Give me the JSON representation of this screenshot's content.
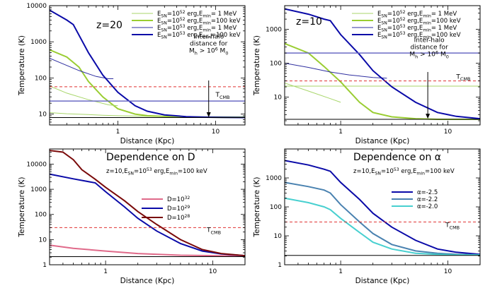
{
  "figure": {
    "x_label": "Distance (Kpc)",
    "y_label": "Temperature (K)"
  },
  "colors": {
    "light_green": "#a8d66a",
    "green": "#9acd32",
    "navy": "#2f2fa0",
    "blue": "#0a0aa8",
    "red_dash": "#e03030",
    "slate": "#6b6bc4",
    "black": "#000000",
    "pink": "#e06a8a",
    "maroon": "#7a0a0a",
    "steel": "#4a82b0",
    "cyan": "#48d0d0",
    "lime_flat": "#b8e08a"
  },
  "chart_data": [
    {
      "id": "z20",
      "type": "line",
      "title": "z=20",
      "subtitle": "",
      "xlabel": "Distance (Kpc)",
      "ylabel": "Temperature (K)",
      "xlim": [
        0.2,
        20
      ],
      "ylim": [
        5,
        10000
      ],
      "x_ticks": [
        "1",
        "10"
      ],
      "y_ticks": [
        "10",
        "100",
        "1000",
        "10000"
      ],
      "legend_position": "top-right",
      "series": [
        {
          "name": "E_SN=10^52 erg,E_min=   1 MeV",
          "legend": true,
          "color": "#a8d66a",
          "width": 1.0,
          "x": [
            0.2,
            0.3,
            0.5,
            0.7,
            1.0,
            1.5,
            2,
            3,
            5,
            8,
            12,
            20
          ],
          "y": [
            11,
            10.2,
            9.7,
            9.3,
            9.0,
            8.8,
            8.7,
            8.6,
            8.5,
            8.5,
            8.5,
            8.5
          ]
        },
        {
          "name": "E_SN=10^52 erg,E_min=100 keV",
          "legend": true,
          "color": "#9acd32",
          "width": 2.0,
          "x": [
            0.2,
            0.3,
            0.4,
            0.5,
            0.7,
            1.0,
            1.5,
            2,
            3,
            5,
            8,
            12,
            20
          ],
          "y": [
            600,
            380,
            200,
            80,
            30,
            14,
            10,
            9,
            8.6,
            8.3,
            8.2,
            8.1,
            8.1
          ]
        },
        {
          "name": "E_SN=10^53 erg,E_min=   1 MeV",
          "legend": true,
          "color": "#2f2fa0",
          "width": 1.0,
          "x": [
            0.2,
            0.4,
            0.6,
            0.8,
            0.9
          ],
          "y": [
            350,
            160,
            110,
            95,
            95
          ]
        },
        {
          "name": "E_SN=10^53 erg,E_min=100 keV",
          "legend": true,
          "color": "#0a0aa8",
          "width": 2.0,
          "x": [
            0.2,
            0.3,
            0.35,
            0.5,
            0.7,
            1.0,
            1.5,
            2,
            3,
            5,
            8,
            12,
            20
          ],
          "y": [
            7500,
            4000,
            3000,
            500,
            120,
            40,
            17,
            12,
            9.5,
            8.5,
            8.2,
            8.1,
            8.0
          ]
        },
        {
          "name": "light-green-tail",
          "legend": false,
          "color": "#a8d66a",
          "width": 1.0,
          "x": [
            0.2,
            0.3,
            0.5,
            0.8,
            1.0
          ],
          "y": [
            60,
            38,
            25,
            18,
            17
          ]
        },
        {
          "name": "T_CMB",
          "legend": false,
          "color": "#e03030",
          "width": 1.0,
          "dash": "4,3",
          "x": [
            0.2,
            20
          ],
          "y": [
            57,
            57
          ]
        },
        {
          "name": "inter-halo",
          "legend": false,
          "color": "#6b6bc4",
          "width": 1.5,
          "x": [
            0.2,
            20
          ],
          "y": [
            23,
            23
          ]
        },
        {
          "name": "floor",
          "legend": false,
          "color": "#000000",
          "width": 1.0,
          "x": [
            0.2,
            20
          ],
          "y": [
            8,
            8
          ]
        }
      ],
      "annotations": {
        "text1": "Inter-halo",
        "text2": "distance for",
        "text3": "M_h > 10^6 M_0",
        "arrow_x": 8.5,
        "arrow_from": 85,
        "arrow_to": 8.2,
        "text_x": 8.5,
        "text_y_log": 500,
        "tcmb_label": "T_CMB",
        "tcmb_x": 10,
        "tcmb_y": 30
      }
    },
    {
      "id": "z10",
      "type": "line",
      "title": "z=10",
      "subtitle": "",
      "xlabel": "Distance (Kpc)",
      "ylabel": "Temperature (K)",
      "xlim": [
        0.3,
        20
      ],
      "ylim": [
        1.5,
        5000
      ],
      "x_ticks": [
        "1",
        "10"
      ],
      "y_ticks": [
        "10",
        "100",
        "1000"
      ],
      "legend_position": "top-right",
      "series": [
        {
          "name": "E_SN=10^52 erg,E_min=   1 MeV",
          "legend": true,
          "color": "#a8d66a",
          "width": 1.0,
          "x": [
            0.3,
            20
          ],
          "y": [
            21,
            21
          ]
        },
        {
          "name": "E_SN=10^52 erg,E_min=100 keV",
          "legend": true,
          "color": "#9acd32",
          "width": 2.0,
          "x": [
            0.3,
            0.5,
            0.7,
            1.0,
            1.5,
            2,
            3,
            5,
            8,
            12,
            20
          ],
          "y": [
            380,
            200,
            80,
            28,
            7,
            3.5,
            2.6,
            2.3,
            2.2,
            2.2,
            2.2
          ]
        },
        {
          "name": "E_SN=10^53 erg,E_min=   1 MeV",
          "legend": true,
          "color": "#2f2fa0",
          "width": 1.0,
          "x": [
            0.3,
            0.5,
            0.8,
            1.2,
            2.0,
            2.7
          ],
          "y": [
            100,
            75,
            55,
            45,
            38,
            36
          ]
        },
        {
          "name": "E_SN=10^53 erg,E_min=100 keV",
          "legend": true,
          "color": "#0a0aa8",
          "width": 2.0,
          "x": [
            0.3,
            0.5,
            0.7,
            0.8,
            1.0,
            1.5,
            2,
            3,
            5,
            8,
            12,
            20
          ],
          "y": [
            4000,
            2800,
            2000,
            1800,
            700,
            180,
            60,
            20,
            7,
            3.5,
            2.7,
            2.3
          ]
        },
        {
          "name": "light-green-curve",
          "legend": false,
          "color": "#a8d66a",
          "width": 1.0,
          "x": [
            0.3,
            0.5,
            0.8,
            1.0
          ],
          "y": [
            26,
            15,
            9,
            7
          ]
        },
        {
          "name": "T_CMB",
          "legend": false,
          "color": "#e03030",
          "width": 1.0,
          "dash": "4,3",
          "x": [
            0.3,
            20
          ],
          "y": [
            30,
            30
          ]
        },
        {
          "name": "inter-halo",
          "legend": false,
          "color": "#6b6bc4",
          "width": 1.5,
          "x": [
            0.3,
            20
          ],
          "y": [
            200,
            200
          ]
        },
        {
          "name": "floor",
          "legend": false,
          "color": "#000000",
          "width": 1.0,
          "x": [
            0.3,
            20
          ],
          "y": [
            2.2,
            2.2
          ]
        }
      ],
      "annotations": {
        "text1": "Inter-halo",
        "text2": "distance for",
        "text3": "M_h > 10^6 M_0",
        "arrow_x": 6.5,
        "arrow_from": 55,
        "arrow_to": 2.3,
        "text_x": 6.7,
        "text_y_log": 160,
        "tcmb_label": "T_CMB",
        "tcmb_x": 12,
        "tcmb_y": 35
      }
    },
    {
      "id": "D",
      "type": "line",
      "title": "Dependence on D",
      "subtitle": "z=10,E_SN=10^53 erg,E_min=100 keV",
      "xlabel": "Distance (Kpc)",
      "ylabel": "Temperature (K)",
      "xlim": [
        0.3,
        20
      ],
      "ylim": [
        1,
        40000
      ],
      "x_ticks": [
        "1",
        "10"
      ],
      "y_ticks": [
        "1",
        "10",
        "100",
        "1000",
        "10000"
      ],
      "legend_position": "right",
      "series": [
        {
          "name": "D=10^32",
          "legend": true,
          "color": "#e06a8a",
          "width": 2.0,
          "x": [
            0.3,
            0.5,
            1.0,
            2.0,
            5.0,
            10,
            20
          ],
          "y": [
            6,
            4.5,
            3.5,
            2.8,
            2.4,
            2.3,
            2.2
          ]
        },
        {
          "name": "D=10^29",
          "legend": true,
          "color": "#0a0aa8",
          "width": 2.0,
          "x": [
            0.3,
            0.5,
            0.8,
            1.0,
            1.5,
            2,
            3,
            5,
            8,
            12,
            20
          ],
          "y": [
            4000,
            2600,
            1800,
            800,
            200,
            70,
            22,
            7,
            3.5,
            2.7,
            2.3
          ]
        },
        {
          "name": "D=10^28",
          "legend": true,
          "color": "#7a0a0a",
          "width": 2.0,
          "x": [
            0.3,
            0.4,
            0.5,
            0.6,
            0.8,
            1.0,
            1.5,
            2,
            3,
            5,
            8,
            12,
            20
          ],
          "y": [
            35000,
            30000,
            15000,
            6000,
            2500,
            1200,
            350,
            130,
            40,
            10,
            4,
            2.8,
            2.3
          ]
        },
        {
          "name": "T_CMB",
          "legend": false,
          "color": "#e03030",
          "width": 1.0,
          "dash": "4,3",
          "x": [
            0.3,
            20
          ],
          "y": [
            30,
            30
          ]
        },
        {
          "name": "floor",
          "legend": false,
          "color": "#000000",
          "width": 1.0,
          "x": [
            0.3,
            20
          ],
          "y": [
            2.1,
            2.1
          ]
        }
      ],
      "annotations": {
        "tcmb_label": "T_CMB",
        "tcmb_x": 8.8,
        "tcmb_y": 20
      }
    },
    {
      "id": "alpha",
      "type": "line",
      "title": "Dependence on α",
      "subtitle": "z=10,E_SN=10^53 erg,E_min=100 keV",
      "xlabel": "Distance (Kpc)",
      "ylabel": "Temperature (K)",
      "xlim": [
        0.3,
        20
      ],
      "ylim": [
        1,
        10000
      ],
      "x_ticks": [
        "1",
        "10"
      ],
      "y_ticks": [
        "1",
        "10",
        "100",
        "1000"
      ],
      "legend_position": "right",
      "series": [
        {
          "name": "α=-2.5",
          "legend": true,
          "color": "#0a0aa8",
          "width": 2.0,
          "x": [
            0.3,
            0.5,
            0.7,
            0.8,
            1.0,
            1.5,
            2,
            3,
            5,
            8,
            12,
            20
          ],
          "y": [
            4000,
            2800,
            2000,
            1700,
            700,
            180,
            60,
            20,
            7,
            3.5,
            2.7,
            2.3
          ]
        },
        {
          "name": "α=-2.2",
          "legend": true,
          "color": "#4a82b0",
          "width": 2.0,
          "x": [
            0.3,
            0.5,
            0.7,
            0.8,
            1.0,
            1.5,
            2,
            3,
            5,
            8,
            12,
            20
          ],
          "y": [
            700,
            500,
            380,
            300,
            120,
            30,
            12,
            5,
            3,
            2.5,
            2.3,
            2.2
          ]
        },
        {
          "name": "α=-2.0",
          "legend": true,
          "color": "#48d0d0",
          "width": 2.0,
          "x": [
            0.3,
            0.5,
            0.7,
            0.8,
            1.0,
            1.5,
            2,
            3,
            5,
            8,
            12,
            20
          ],
          "y": [
            200,
            140,
            100,
            80,
            40,
            13,
            6,
            3.5,
            2.5,
            2.3,
            2.2,
            2.2
          ]
        },
        {
          "name": "T_CMB",
          "legend": false,
          "color": "#e03030",
          "width": 1.0,
          "dash": "4,3",
          "x": [
            0.3,
            20
          ],
          "y": [
            30,
            30
          ]
        },
        {
          "name": "floor",
          "legend": false,
          "color": "#000000",
          "width": 1.0,
          "x": [
            0.3,
            20
          ],
          "y": [
            2.1,
            2.1
          ]
        }
      ],
      "annotations": {
        "tcmb_label": "T_CMB",
        "tcmb_x": 9.5,
        "tcmb_y": 20
      }
    }
  ]
}
